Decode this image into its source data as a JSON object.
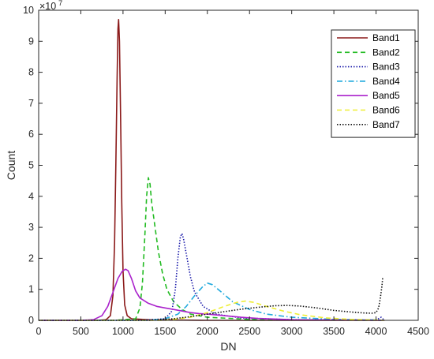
{
  "chart_data": {
    "type": "line",
    "xlabel": "DN",
    "ylabel": "Count",
    "xlim": [
      0,
      4500
    ],
    "ylim": [
      0,
      10
    ],
    "x_ticks": [
      0,
      500,
      1000,
      1500,
      2000,
      2500,
      3000,
      3500,
      4000,
      4500
    ],
    "y_ticks": [
      0,
      1,
      2,
      3,
      4,
      5,
      6,
      7,
      8,
      9,
      10
    ],
    "y_multiplier": "×10",
    "y_multiplier_exponent": "7",
    "legend_position": "top-right",
    "grid": false,
    "series": [
      {
        "name": "Band1",
        "color": "#8B1A1A",
        "style": "solid",
        "points": [
          [
            0,
            0
          ],
          [
            700,
            0
          ],
          [
            800,
            0.02
          ],
          [
            850,
            0.15
          ],
          [
            880,
            0.8
          ],
          [
            900,
            2.5
          ],
          [
            915,
            5.0
          ],
          [
            930,
            7.8
          ],
          [
            940,
            9.4
          ],
          [
            948,
            9.7
          ],
          [
            958,
            9.0
          ],
          [
            970,
            6.8
          ],
          [
            985,
            3.8
          ],
          [
            1000,
            1.6
          ],
          [
            1020,
            0.5
          ],
          [
            1050,
            0.15
          ],
          [
            1100,
            0.05
          ],
          [
            1300,
            0.02
          ],
          [
            1600,
            0.01
          ],
          [
            2000,
            0.0
          ],
          [
            4100,
            0.0
          ]
        ]
      },
      {
        "name": "Band2",
        "color": "#22BB22",
        "style": "dashed",
        "points": [
          [
            0,
            0
          ],
          [
            900,
            0
          ],
          [
            1150,
            0.05
          ],
          [
            1200,
            0.4
          ],
          [
            1230,
            1.2
          ],
          [
            1260,
            2.8
          ],
          [
            1280,
            4.0
          ],
          [
            1300,
            4.6
          ],
          [
            1320,
            4.4
          ],
          [
            1340,
            3.8
          ],
          [
            1380,
            3.0
          ],
          [
            1420,
            2.2
          ],
          [
            1470,
            1.5
          ],
          [
            1520,
            1.0
          ],
          [
            1600,
            0.6
          ],
          [
            1700,
            0.35
          ],
          [
            1800,
            0.2
          ],
          [
            2000,
            0.1
          ],
          [
            2500,
            0.03
          ],
          [
            3000,
            0.01
          ],
          [
            4100,
            0.0
          ]
        ]
      },
      {
        "name": "Band3",
        "color": "#1A1AAA",
        "style": "dotted",
        "points": [
          [
            0,
            0
          ],
          [
            1200,
            0
          ],
          [
            1500,
            0.05
          ],
          [
            1580,
            0.3
          ],
          [
            1620,
            1.0
          ],
          [
            1650,
            2.0
          ],
          [
            1680,
            2.7
          ],
          [
            1700,
            2.8
          ],
          [
            1720,
            2.6
          ],
          [
            1760,
            2.0
          ],
          [
            1800,
            1.4
          ],
          [
            1850,
            0.9
          ],
          [
            1950,
            0.45
          ],
          [
            2100,
            0.2
          ],
          [
            2400,
            0.08
          ],
          [
            3000,
            0.02
          ],
          [
            4000,
            0.01
          ],
          [
            4060,
            0.1
          ],
          [
            4100,
            0.0
          ]
        ]
      },
      {
        "name": "Band4",
        "color": "#22AADD",
        "style": "dashdot",
        "points": [
          [
            0,
            0
          ],
          [
            1300,
            0
          ],
          [
            1500,
            0.05
          ],
          [
            1650,
            0.2
          ],
          [
            1750,
            0.45
          ],
          [
            1850,
            0.8
          ],
          [
            1950,
            1.1
          ],
          [
            2000,
            1.2
          ],
          [
            2060,
            1.15
          ],
          [
            2150,
            0.95
          ],
          [
            2300,
            0.6
          ],
          [
            2500,
            0.35
          ],
          [
            2700,
            0.2
          ],
          [
            3000,
            0.1
          ],
          [
            3500,
            0.03
          ],
          [
            4000,
            0.01
          ],
          [
            4100,
            0.0
          ]
        ]
      },
      {
        "name": "Band5",
        "color": "#AA22CC",
        "style": "solid",
        "points": [
          [
            0,
            0
          ],
          [
            500,
            0
          ],
          [
            650,
            0.02
          ],
          [
            750,
            0.15
          ],
          [
            820,
            0.45
          ],
          [
            880,
            0.9
          ],
          [
            940,
            1.35
          ],
          [
            990,
            1.58
          ],
          [
            1030,
            1.65
          ],
          [
            1060,
            1.6
          ],
          [
            1100,
            1.35
          ],
          [
            1150,
            0.95
          ],
          [
            1200,
            0.72
          ],
          [
            1300,
            0.55
          ],
          [
            1400,
            0.45
          ],
          [
            1500,
            0.4
          ],
          [
            1600,
            0.35
          ],
          [
            1700,
            0.3
          ],
          [
            1800,
            0.25
          ],
          [
            1900,
            0.22
          ],
          [
            2000,
            0.2
          ],
          [
            2200,
            0.15
          ],
          [
            2400,
            0.1
          ],
          [
            2600,
            0.06
          ],
          [
            3000,
            0.02
          ],
          [
            4100,
            0.0
          ]
        ]
      },
      {
        "name": "Band6",
        "color": "#EEEE33",
        "style": "dashed",
        "points": [
          [
            0,
            0
          ],
          [
            1500,
            0
          ],
          [
            1800,
            0.1
          ],
          [
            2000,
            0.25
          ],
          [
            2200,
            0.45
          ],
          [
            2350,
            0.58
          ],
          [
            2450,
            0.62
          ],
          [
            2550,
            0.58
          ],
          [
            2700,
            0.45
          ],
          [
            2900,
            0.3
          ],
          [
            3100,
            0.18
          ],
          [
            3400,
            0.08
          ],
          [
            3700,
            0.03
          ],
          [
            4000,
            0.01
          ],
          [
            4100,
            0.0
          ]
        ]
      },
      {
        "name": "Band7",
        "color": "#111111",
        "style": "dotted",
        "points": [
          [
            0,
            0
          ],
          [
            1300,
            0
          ],
          [
            1600,
            0.05
          ],
          [
            1800,
            0.12
          ],
          [
            2000,
            0.2
          ],
          [
            2200,
            0.28
          ],
          [
            2400,
            0.36
          ],
          [
            2600,
            0.42
          ],
          [
            2800,
            0.47
          ],
          [
            2950,
            0.48
          ],
          [
            3100,
            0.46
          ],
          [
            3300,
            0.4
          ],
          [
            3500,
            0.32
          ],
          [
            3700,
            0.27
          ],
          [
            3850,
            0.24
          ],
          [
            3950,
            0.23
          ],
          [
            4000,
            0.25
          ],
          [
            4030,
            0.4
          ],
          [
            4050,
            0.7
          ],
          [
            4070,
            1.1
          ],
          [
            4080,
            1.4
          ]
        ]
      }
    ]
  }
}
